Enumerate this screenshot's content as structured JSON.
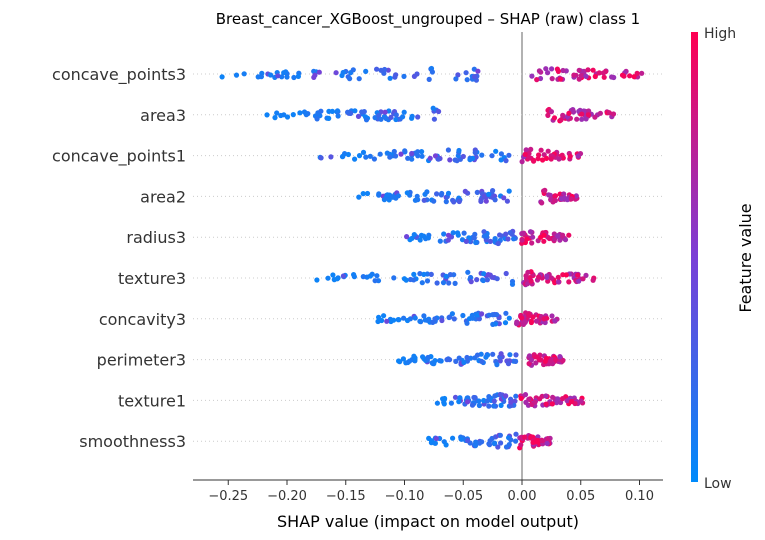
{
  "chart_data": {
    "type": "scatter",
    "subtype": "shap-beeswarm",
    "title": "Breast_cancer_XGBoost_ungrouped – SHAP (raw) class 1",
    "xlabel": "SHAP value (impact on model output)",
    "xlim": [
      -0.28,
      0.12
    ],
    "xticks": [
      -0.25,
      -0.2,
      -0.15,
      -0.1,
      -0.05,
      0.0,
      0.05,
      0.1
    ],
    "xtick_labels": [
      "−0.25",
      "−0.20",
      "−0.15",
      "−0.10",
      "−0.05",
      "0.00",
      "0.05",
      "0.10"
    ],
    "features": [
      "concave_points3",
      "area3",
      "concave_points1",
      "area2",
      "radius3",
      "texture3",
      "concavity3",
      "perimeter3",
      "texture1",
      "smoothness3"
    ],
    "colorbar": {
      "label": "Feature value",
      "high_label": "High",
      "low_label": "Low",
      "high_color": "#ff0052",
      "low_color": "#008bfb"
    },
    "series": [
      {
        "feature": "concave_points3",
        "neg_range": [
          -0.262,
          -0.035
        ],
        "pos_range": [
          0.008,
          0.103
        ],
        "neg_count": 60,
        "pos_count": 50
      },
      {
        "feature": "area3",
        "neg_range": [
          -0.222,
          -0.07
        ],
        "pos_range": [
          0.022,
          0.078
        ],
        "neg_count": 65,
        "pos_count": 45
      },
      {
        "feature": "concave_points1",
        "neg_range": [
          -0.178,
          -0.01
        ],
        "pos_range": [
          0.0,
          0.05
        ],
        "neg_count": 65,
        "pos_count": 40
      },
      {
        "feature": "area2",
        "neg_range": [
          -0.145,
          -0.01
        ],
        "pos_range": [
          0.015,
          0.048
        ],
        "neg_count": 70,
        "pos_count": 35
      },
      {
        "feature": "radius3",
        "neg_range": [
          -0.1,
          -0.005
        ],
        "pos_range": [
          -0.002,
          0.04
        ],
        "neg_count": 60,
        "pos_count": 40
      },
      {
        "feature": "texture3",
        "neg_range": [
          -0.175,
          -0.005
        ],
        "pos_range": [
          0.0,
          0.062
        ],
        "neg_count": 60,
        "pos_count": 50
      },
      {
        "feature": "concavity3",
        "neg_range": [
          -0.128,
          -0.01
        ],
        "pos_range": [
          -0.005,
          0.03
        ],
        "neg_count": 60,
        "pos_count": 45
      },
      {
        "feature": "perimeter3",
        "neg_range": [
          -0.115,
          -0.005
        ],
        "pos_range": [
          0.005,
          0.035
        ],
        "neg_count": 60,
        "pos_count": 45
      },
      {
        "feature": "texture1",
        "neg_range": [
          -0.082,
          -0.005
        ],
        "pos_range": [
          -0.002,
          0.052
        ],
        "neg_count": 55,
        "pos_count": 50
      },
      {
        "feature": "smoothness3",
        "neg_range": [
          -0.082,
          -0.005
        ],
        "pos_range": [
          -0.002,
          0.025
        ],
        "neg_count": 45,
        "pos_count": 50
      }
    ]
  }
}
